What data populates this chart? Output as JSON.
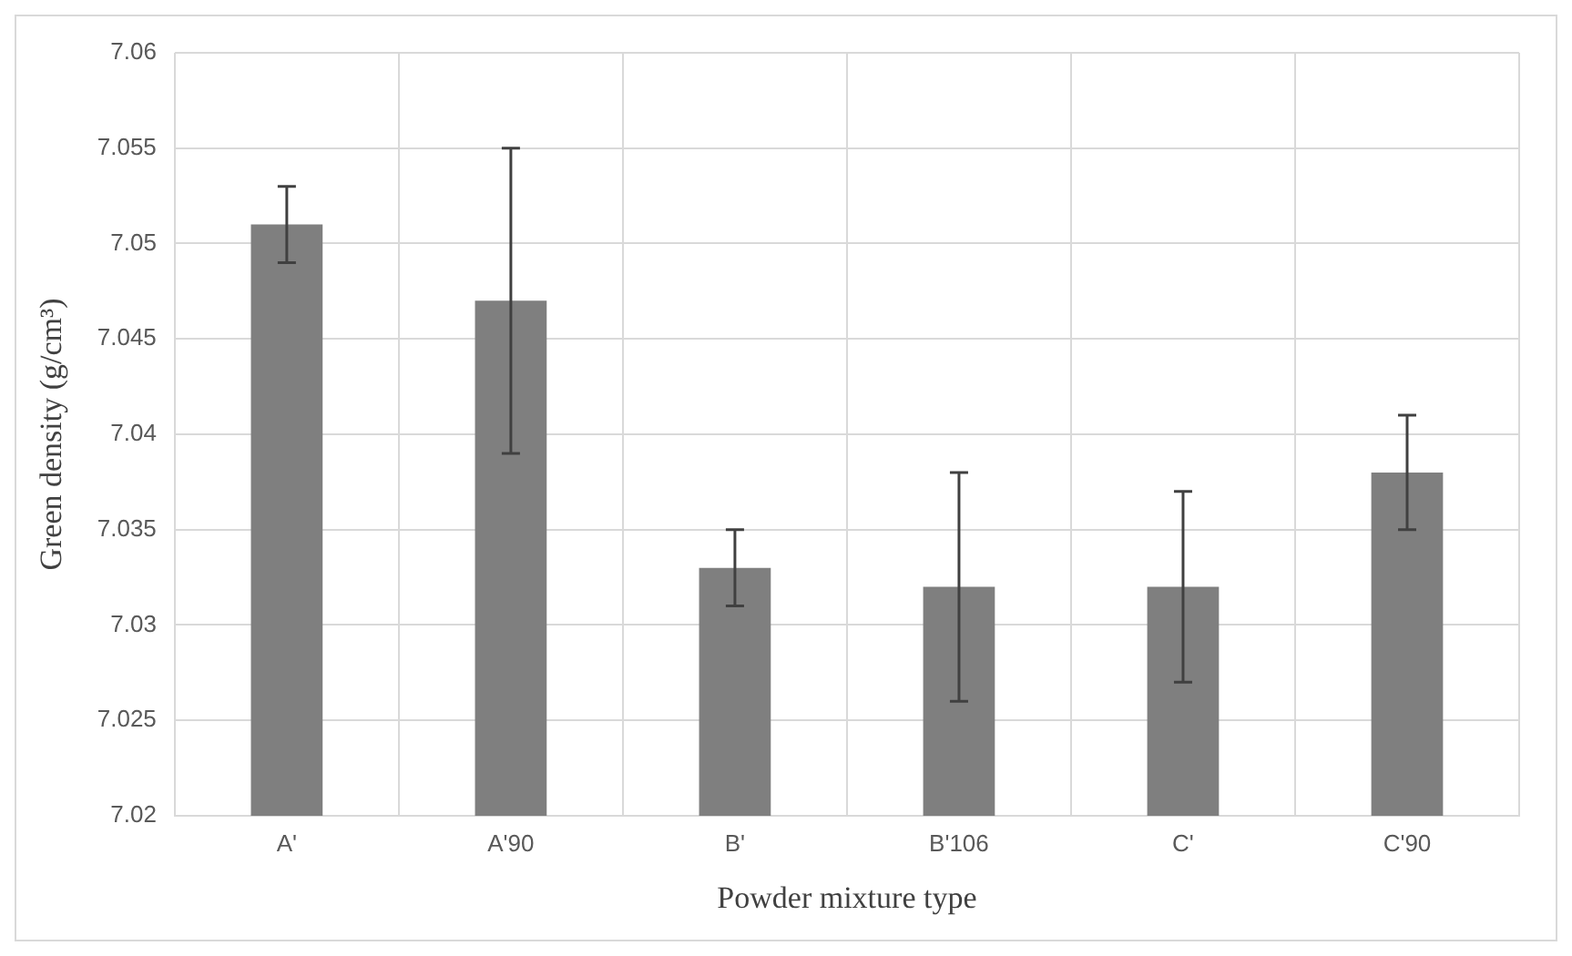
{
  "chart_data": {
    "type": "bar",
    "xlabel": "Powder mixture type",
    "ylabel": "Green density (g/cm³)",
    "categories": [
      "A'",
      "A'90",
      "B'",
      "B'106",
      "C'",
      "C'90"
    ],
    "values": [
      7.051,
      7.047,
      7.033,
      7.032,
      7.032,
      7.038
    ],
    "errors": [
      0.002,
      0.008,
      0.002,
      0.006,
      0.005,
      0.003
    ],
    "color": "#7f7f7f",
    "ylim": [
      7.02,
      7.06
    ],
    "yticks": [
      7.02,
      7.025,
      7.03,
      7.035,
      7.04,
      7.045,
      7.05,
      7.055,
      7.06
    ],
    "grid": true,
    "legend": false
  }
}
